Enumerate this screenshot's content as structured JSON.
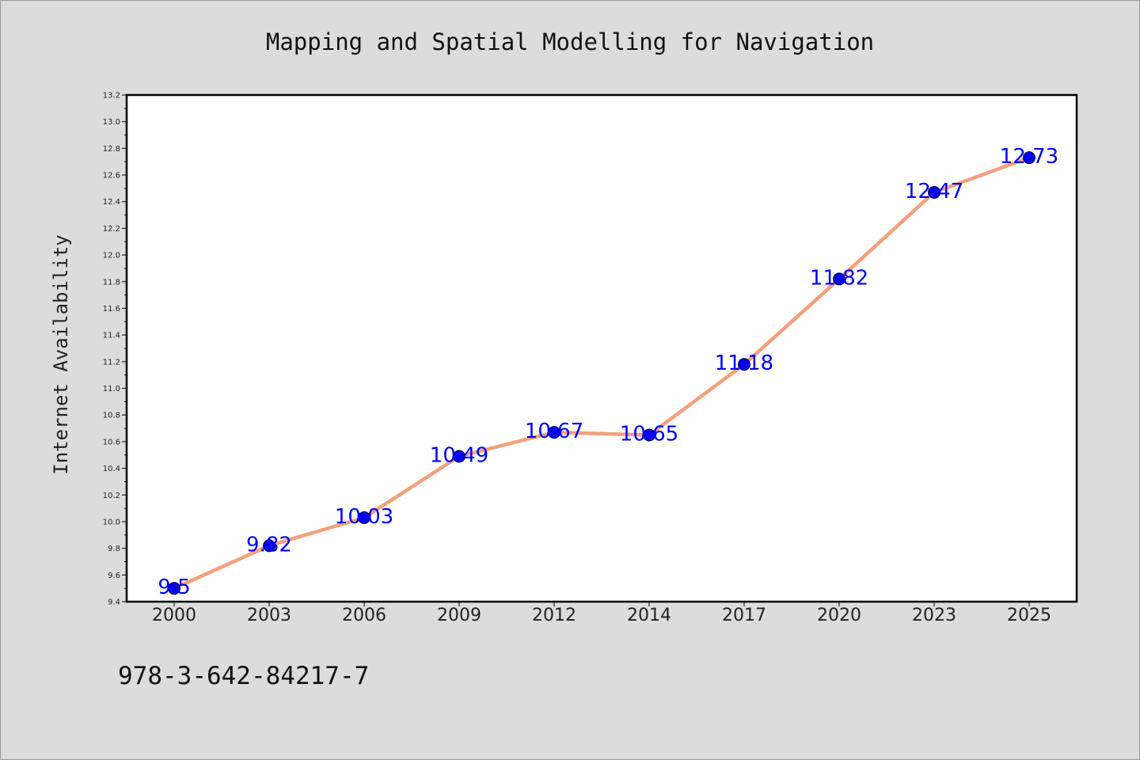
{
  "chart_data": {
    "type": "line",
    "title": "Mapping and Spatial Modelling for Navigation",
    "xlabel": "",
    "ylabel": "Internet Availability",
    "categories": [
      "2000",
      "2003",
      "2006",
      "2009",
      "2012",
      "2014",
      "2017",
      "2020",
      "2023",
      "2025"
    ],
    "series": [
      {
        "values": [
          9.5,
          9.82,
          10.03,
          10.49,
          10.67,
          10.65,
          11.18,
          11.82,
          12.47,
          12.73
        ]
      }
    ],
    "data_labels": [
      "9.5",
      "9.82",
      "10.03",
      "10.49",
      "10.67",
      "10.65",
      "11.18",
      "11.82",
      "12.47",
      "12.73"
    ],
    "ylim": [
      9.4,
      13.2
    ],
    "yticks": [
      "9.4",
      "9.6",
      "9.8",
      "10.0",
      "10.2",
      "10.4",
      "10.6",
      "10.8",
      "11.0",
      "11.2",
      "11.4",
      "11.6",
      "11.8",
      "12.0",
      "12.2",
      "12.4",
      "12.6",
      "12.8",
      "13.0",
      "13.2"
    ],
    "grid": false,
    "colors": {
      "line": "#f4a07c",
      "marker": "#0000ee",
      "label": "#0000ff"
    }
  },
  "footer": {
    "text": "978-3-642-84217-7"
  }
}
